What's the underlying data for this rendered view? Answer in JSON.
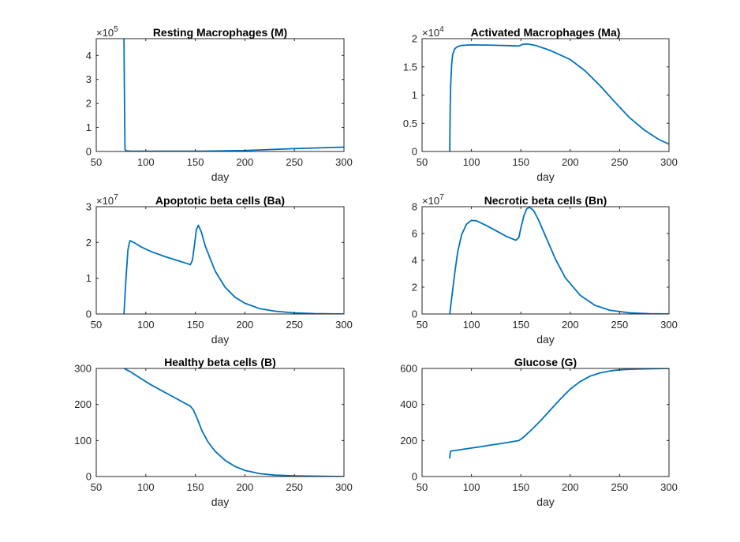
{
  "colors": {
    "series": "#0072BD",
    "axis": "#262626"
  },
  "chart_data": [
    {
      "type": "line",
      "title": "Resting Macrophages (M)",
      "xlabel": "day",
      "ylabel": "",
      "xlim": [
        50,
        300
      ],
      "ylim": [
        0,
        4.7
      ],
      "xticks": [
        "50",
        "100",
        "150",
        "200",
        "250",
        "300"
      ],
      "yticks": [
        "0",
        "1",
        "2",
        "3",
        "4"
      ],
      "exponent_base": "×10",
      "exponent_power": "5",
      "series": [
        {
          "x": [
            78,
            78.3,
            79,
            80,
            85,
            100,
            150,
            200,
            250,
            300
          ],
          "y": [
            4.7,
            3.0,
            0.1,
            0.03,
            0.01,
            0.01,
            0.01,
            0.04,
            0.12,
            0.18
          ]
        }
      ]
    },
    {
      "type": "line",
      "title": "Activated Macrophages (Ma)",
      "xlabel": "day",
      "ylabel": "",
      "xlim": [
        50,
        300
      ],
      "ylim": [
        0,
        2
      ],
      "xticks": [
        "50",
        "100",
        "150",
        "200",
        "250",
        "300"
      ],
      "yticks": [
        "0",
        "0.5",
        "1",
        "1.5",
        "2"
      ],
      "exponent_base": "×10",
      "exponent_power": "4",
      "series": [
        {
          "x": [
            78,
            78.5,
            79,
            80,
            81,
            83,
            86,
            90,
            100,
            120,
            140,
            148,
            152,
            157,
            165,
            180,
            200,
            215,
            230,
            245,
            260,
            275,
            290,
            300
          ],
          "y": [
            0,
            0.8,
            1.2,
            1.55,
            1.72,
            1.82,
            1.86,
            1.88,
            1.89,
            1.885,
            1.875,
            1.87,
            1.9,
            1.905,
            1.88,
            1.79,
            1.63,
            1.43,
            1.17,
            0.88,
            0.6,
            0.38,
            0.21,
            0.13
          ]
        }
      ]
    },
    {
      "type": "line",
      "title": "Apoptotic beta cells (Ba)",
      "xlabel": "day",
      "ylabel": "",
      "xlim": [
        50,
        300
      ],
      "ylim": [
        0,
        3
      ],
      "xticks": [
        "50",
        "100",
        "150",
        "200",
        "250",
        "300"
      ],
      "yticks": [
        "0",
        "1",
        "2",
        "3"
      ],
      "exponent_base": "×10",
      "exponent_power": "7",
      "series": [
        {
          "x": [
            78,
            80,
            82,
            84,
            88,
            95,
            105,
            120,
            135,
            145,
            147,
            149,
            151,
            153,
            156,
            160,
            170,
            180,
            190,
            200,
            215,
            230,
            250,
            270,
            300
          ],
          "y": [
            0,
            1.0,
            1.8,
            2.05,
            2.0,
            1.88,
            1.75,
            1.6,
            1.47,
            1.38,
            1.5,
            1.9,
            2.35,
            2.48,
            2.3,
            1.9,
            1.2,
            0.75,
            0.47,
            0.3,
            0.15,
            0.08,
            0.03,
            0.01,
            0
          ]
        }
      ]
    },
    {
      "type": "line",
      "title": "Necrotic beta cells (Bn)",
      "xlabel": "day",
      "ylabel": "",
      "xlim": [
        50,
        300
      ],
      "ylim": [
        0,
        8
      ],
      "xticks": [
        "50",
        "100",
        "150",
        "200",
        "250",
        "300"
      ],
      "yticks": [
        "0",
        "2",
        "4",
        "6",
        "8"
      ],
      "exponent_base": "×10",
      "exponent_power": "7",
      "series": [
        {
          "x": [
            78,
            80,
            83,
            86,
            90,
            95,
            100,
            105,
            115,
            125,
            135,
            145,
            148,
            150,
            153,
            156,
            159,
            163,
            168,
            175,
            185,
            195,
            210,
            225,
            240,
            260,
            280,
            300
          ],
          "y": [
            0,
            1.2,
            3.0,
            4.6,
            5.9,
            6.7,
            6.98,
            6.95,
            6.6,
            6.2,
            5.8,
            5.5,
            5.7,
            6.4,
            7.3,
            7.85,
            7.95,
            7.7,
            7.0,
            5.8,
            4.1,
            2.7,
            1.4,
            0.65,
            0.28,
            0.09,
            0.02,
            0
          ]
        }
      ]
    },
    {
      "type": "line",
      "title": "Healthy beta cells (B)",
      "xlabel": "day",
      "ylabel": "",
      "xlim": [
        50,
        300
      ],
      "ylim": [
        0,
        300
      ],
      "xticks": [
        "50",
        "100",
        "150",
        "200",
        "250",
        "300"
      ],
      "yticks": [
        "0",
        "100",
        "200",
        "300"
      ],
      "exponent_base": "",
      "exponent_power": "",
      "series": [
        {
          "x": [
            78,
            85,
            95,
            105,
            115,
            125,
            135,
            145,
            148,
            152,
            157,
            163,
            170,
            180,
            190,
            200,
            215,
            230,
            250,
            270,
            300
          ],
          "y": [
            300,
            290,
            272,
            255,
            240,
            225,
            210,
            195,
            185,
            160,
            125,
            95,
            70,
            45,
            28,
            17,
            8,
            4,
            2,
            1,
            0
          ]
        }
      ]
    },
    {
      "type": "line",
      "title": "Glucose (G)",
      "xlabel": "day",
      "ylabel": "",
      "xlim": [
        50,
        300
      ],
      "ylim": [
        0,
        600
      ],
      "xticks": [
        "50",
        "100",
        "150",
        "200",
        "250",
        "300"
      ],
      "yticks": [
        "0",
        "200",
        "400",
        "600"
      ],
      "exponent_base": "",
      "exponent_power": "",
      "series": [
        {
          "x": [
            78,
            78.5,
            79,
            80,
            90,
            100,
            110,
            120,
            130,
            140,
            148,
            152,
            160,
            170,
            180,
            190,
            200,
            210,
            220,
            230,
            240,
            250,
            260,
            270,
            280,
            290,
            300
          ],
          "y": [
            100,
            130,
            140,
            142,
            150,
            158,
            166,
            175,
            183,
            192,
            200,
            215,
            255,
            310,
            370,
            430,
            485,
            527,
            557,
            575,
            586,
            592,
            595,
            597,
            598,
            599,
            600
          ]
        }
      ]
    }
  ]
}
